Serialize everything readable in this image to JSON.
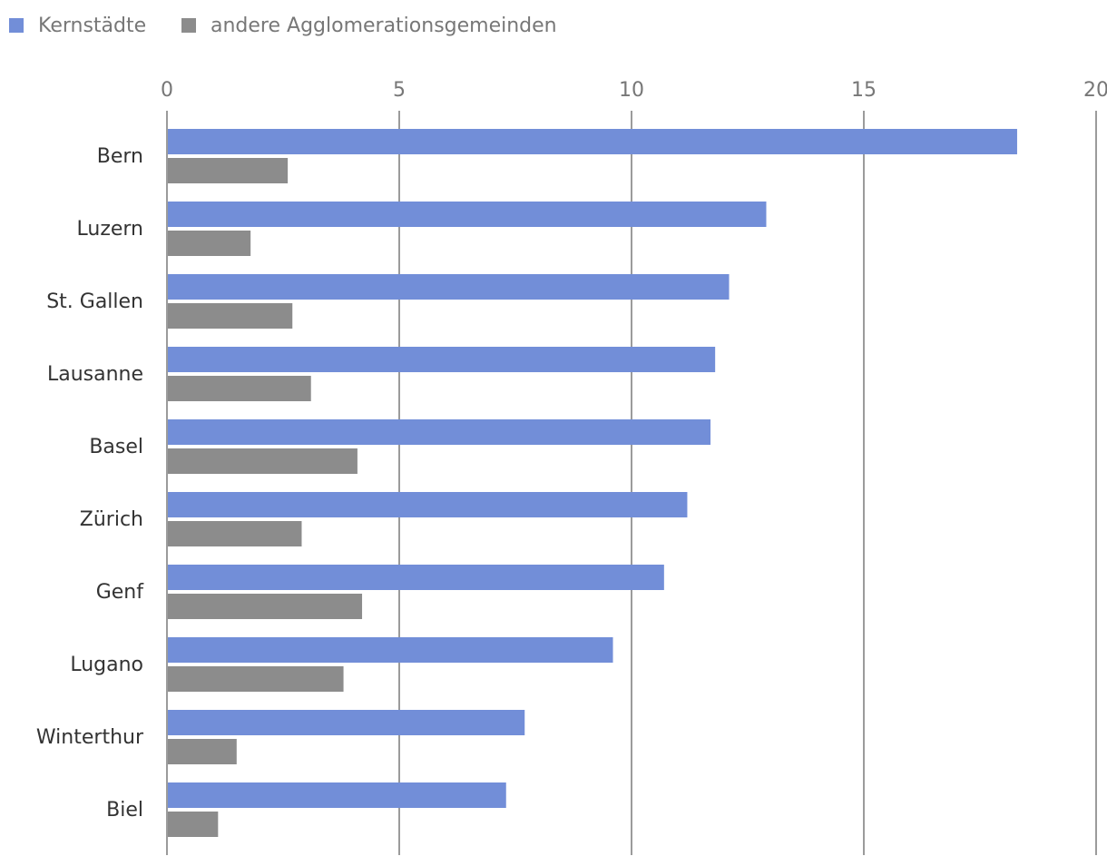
{
  "chart_data": {
    "type": "bar",
    "orientation": "horizontal",
    "title": "",
    "xlabel": "",
    "ylabel": "",
    "xlim": [
      0,
      20
    ],
    "ticks": [
      "0",
      "5",
      "10",
      "15",
      "20"
    ],
    "grid": true,
    "legend_position": "top-left",
    "categories": [
      "Bern",
      "Luzern",
      "St. Gallen",
      "Lausanne",
      "Basel",
      "Zürich",
      "Genf",
      "Lugano",
      "Winterthur",
      "Biel"
    ],
    "series": [
      {
        "name": "Kernstädte",
        "color": "#728ed8",
        "values": [
          18.3,
          12.9,
          12.1,
          11.8,
          11.7,
          11.2,
          10.7,
          9.6,
          7.7,
          7.3
        ]
      },
      {
        "name": "andere Agglomerationsgemeinden",
        "color": "#8c8c8c",
        "values": [
          2.6,
          1.8,
          2.7,
          3.1,
          4.1,
          2.9,
          4.2,
          3.8,
          1.5,
          1.1
        ]
      }
    ]
  }
}
